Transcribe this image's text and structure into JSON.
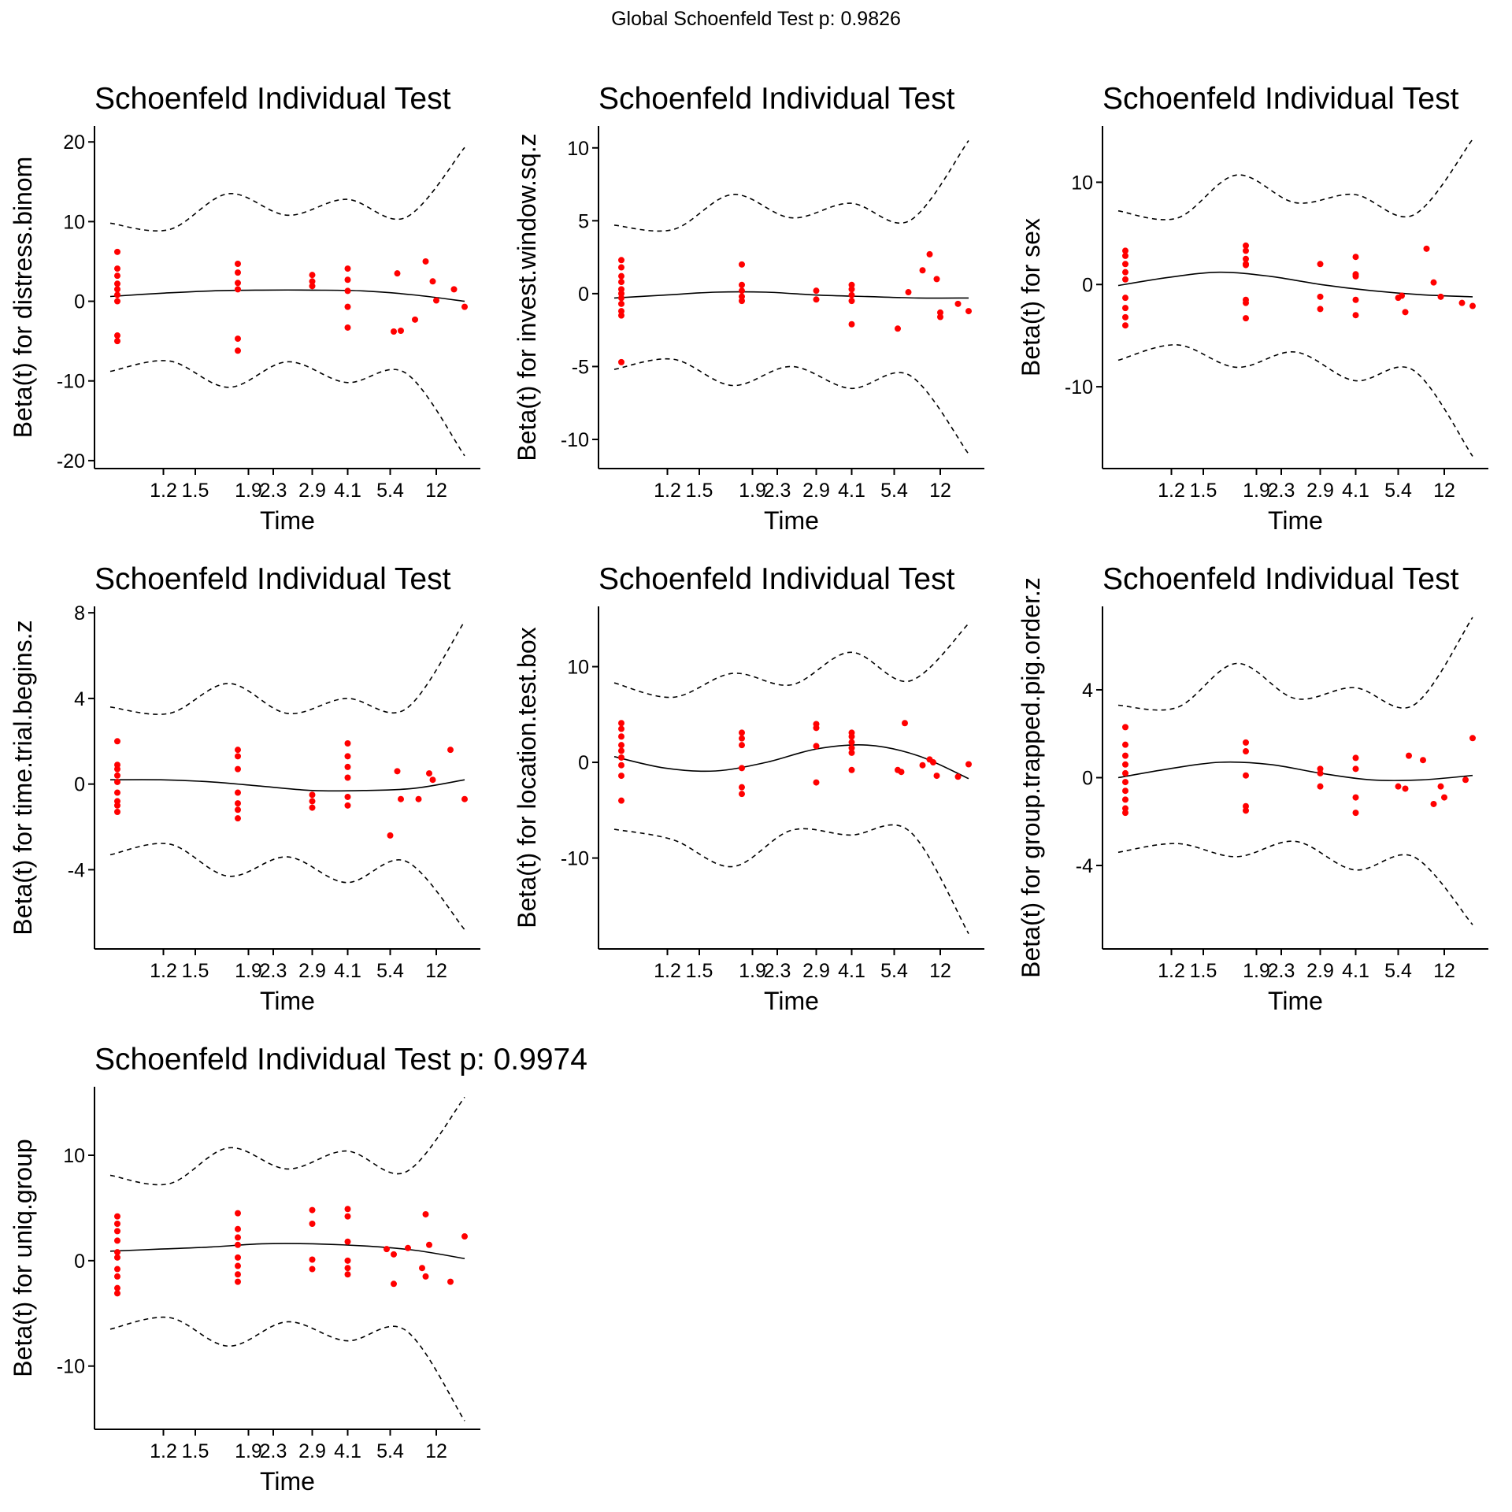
{
  "figure": {
    "global_title": "Global Schoenfeld Test p: 0.9826"
  },
  "style": {
    "point_color": "#ff0000",
    "fit_color": "#000000",
    "band_color": "#000000",
    "background": "#ffffff"
  },
  "chart_data": [
    {
      "type": "scatter",
      "title": "Schoenfeld Individual Test",
      "xlabel": "Time",
      "ylabel": "Beta(t) for distress.binom",
      "x_tick_labels": [
        "1.2",
        "1.5",
        "1.9",
        "2.3",
        "2.9",
        "4.1",
        "5.4",
        "12"
      ],
      "yticks": [
        -20,
        -10,
        0,
        10,
        20
      ],
      "ylim": [
        -21,
        22
      ],
      "fit": [
        0.6,
        1.0,
        1.3,
        1.4,
        1.4,
        1.3,
        0.8,
        0.0
      ],
      "upper": [
        9.8,
        9.0,
        13.5,
        10.8,
        12.8,
        10.5,
        19.3
      ],
      "lower": [
        -8.8,
        -7.5,
        -10.8,
        -7.6,
        -10.2,
        -9.0,
        -19.4
      ],
      "points": [
        [
          0.02,
          6.2
        ],
        [
          0.02,
          4.1
        ],
        [
          0.02,
          3.2
        ],
        [
          0.02,
          2.2
        ],
        [
          0.02,
          1.5
        ],
        [
          0.02,
          0.8
        ],
        [
          0.02,
          0.0
        ],
        [
          0.02,
          -4.3
        ],
        [
          0.02,
          -5.0
        ],
        [
          0.36,
          4.7
        ],
        [
          0.36,
          3.6
        ],
        [
          0.36,
          2.3
        ],
        [
          0.36,
          1.5
        ],
        [
          0.36,
          -4.7
        ],
        [
          0.36,
          -6.2
        ],
        [
          0.57,
          3.3
        ],
        [
          0.57,
          2.5
        ],
        [
          0.57,
          1.9
        ],
        [
          0.67,
          4.1
        ],
        [
          0.67,
          2.7
        ],
        [
          0.67,
          1.3
        ],
        [
          0.67,
          -0.7
        ],
        [
          0.67,
          -3.3
        ],
        [
          0.8,
          -3.8
        ],
        [
          0.81,
          3.5
        ],
        [
          0.82,
          -3.7
        ],
        [
          0.86,
          -2.3
        ],
        [
          0.89,
          5.0
        ],
        [
          0.91,
          2.5
        ],
        [
          0.92,
          0.1
        ],
        [
          0.97,
          1.5
        ],
        [
          1.0,
          -0.7
        ]
      ]
    },
    {
      "type": "scatter",
      "title": "Schoenfeld Individual Test",
      "xlabel": "Time",
      "ylabel": "Beta(t) for invest.window.sq.z",
      "x_tick_labels": [
        "1.2",
        "1.5",
        "1.9",
        "2.3",
        "2.9",
        "4.1",
        "5.4",
        "12"
      ],
      "yticks": [
        -10,
        -5,
        0,
        5,
        10
      ],
      "ylim": [
        -12,
        11.5
      ],
      "fit": [
        -0.3,
        -0.1,
        0.1,
        0.1,
        -0.1,
        -0.2,
        -0.3,
        -0.3
      ],
      "upper": [
        4.7,
        4.4,
        6.8,
        5.2,
        6.2,
        5.0,
        10.5
      ],
      "lower": [
        -5.2,
        -4.5,
        -6.3,
        -5.0,
        -6.5,
        -5.6,
        -11.0
      ],
      "points": [
        [
          0.02,
          2.3
        ],
        [
          0.02,
          1.8
        ],
        [
          0.02,
          1.2
        ],
        [
          0.02,
          0.8
        ],
        [
          0.02,
          0.3
        ],
        [
          0.02,
          0.0
        ],
        [
          0.02,
          -0.3
        ],
        [
          0.02,
          -0.7
        ],
        [
          0.02,
          -1.2
        ],
        [
          0.02,
          -1.5
        ],
        [
          0.02,
          -4.7
        ],
        [
          0.36,
          2.0
        ],
        [
          0.36,
          0.6
        ],
        [
          0.36,
          0.2
        ],
        [
          0.36,
          -0.2
        ],
        [
          0.36,
          -0.5
        ],
        [
          0.57,
          0.2
        ],
        [
          0.57,
          -0.4
        ],
        [
          0.67,
          0.6
        ],
        [
          0.67,
          0.3
        ],
        [
          0.67,
          -0.1
        ],
        [
          0.67,
          -0.5
        ],
        [
          0.67,
          -2.1
        ],
        [
          0.8,
          -2.4
        ],
        [
          0.83,
          0.1
        ],
        [
          0.87,
          1.6
        ],
        [
          0.89,
          2.7
        ],
        [
          0.91,
          1.0
        ],
        [
          0.92,
          -1.3
        ],
        [
          0.92,
          -1.6
        ],
        [
          0.97,
          -0.7
        ],
        [
          1.0,
          -1.2
        ]
      ]
    },
    {
      "type": "scatter",
      "title": "Schoenfeld Individual Test",
      "xlabel": "Time",
      "ylabel": "Beta(t) for sex",
      "x_tick_labels": [
        "1.2",
        "1.5",
        "1.9",
        "2.3",
        "2.9",
        "4.1",
        "5.4",
        "12"
      ],
      "yticks": [
        -10,
        0,
        10
      ],
      "ylim": [
        -18,
        15.5
      ],
      "fit": [
        -0.1,
        0.7,
        1.2,
        0.8,
        0.0,
        -0.6,
        -1.0,
        -1.2
      ],
      "upper": [
        7.2,
        6.5,
        10.7,
        8.0,
        8.8,
        6.8,
        14.2
      ],
      "lower": [
        -7.4,
        -5.9,
        -8.1,
        -6.6,
        -9.4,
        -8.4,
        -16.8
      ],
      "points": [
        [
          0.02,
          3.3
        ],
        [
          0.02,
          2.8
        ],
        [
          0.02,
          2.0
        ],
        [
          0.02,
          1.2
        ],
        [
          0.02,
          0.5
        ],
        [
          0.02,
          -1.3
        ],
        [
          0.02,
          -2.3
        ],
        [
          0.02,
          -3.2
        ],
        [
          0.02,
          -4.0
        ],
        [
          0.36,
          3.8
        ],
        [
          0.36,
          3.3
        ],
        [
          0.36,
          2.5
        ],
        [
          0.36,
          2.0
        ],
        [
          0.36,
          1.9
        ],
        [
          0.36,
          -1.5
        ],
        [
          0.36,
          -1.8
        ],
        [
          0.36,
          -3.3
        ],
        [
          0.57,
          2.0
        ],
        [
          0.57,
          -1.2
        ],
        [
          0.57,
          -2.4
        ],
        [
          0.67,
          2.7
        ],
        [
          0.67,
          1.0
        ],
        [
          0.67,
          0.8
        ],
        [
          0.67,
          -1.5
        ],
        [
          0.67,
          -3.0
        ],
        [
          0.79,
          -1.3
        ],
        [
          0.8,
          -1.1
        ],
        [
          0.81,
          -2.7
        ],
        [
          0.87,
          3.5
        ],
        [
          0.89,
          0.2
        ],
        [
          0.91,
          -1.2
        ],
        [
          0.97,
          -1.8
        ],
        [
          1.0,
          -2.1
        ]
      ]
    },
    {
      "type": "scatter",
      "title": "Schoenfeld Individual Test",
      "xlabel": "Time",
      "ylabel": "Beta(t) for time.trial.begins.z",
      "x_tick_labels": [
        "1.2",
        "1.5",
        "1.9",
        "2.3",
        "2.9",
        "4.1",
        "5.4",
        "12"
      ],
      "yticks": [
        -4,
        0,
        4,
        8
      ],
      "ylim": [
        -7.7,
        8.3
      ],
      "fit": [
        0.2,
        0.2,
        0.1,
        -0.1,
        -0.3,
        -0.3,
        -0.2,
        0.2
      ],
      "upper": [
        3.6,
        3.3,
        4.7,
        3.3,
        4.0,
        3.5,
        7.6
      ],
      "lower": [
        -3.3,
        -2.8,
        -4.3,
        -3.4,
        -4.6,
        -3.6,
        -6.8
      ],
      "points": [
        [
          0.02,
          2.0
        ],
        [
          0.02,
          0.9
        ],
        [
          0.02,
          0.7
        ],
        [
          0.02,
          0.4
        ],
        [
          0.02,
          0.1
        ],
        [
          0.02,
          -0.4
        ],
        [
          0.02,
          -0.8
        ],
        [
          0.02,
          -1.0
        ],
        [
          0.02,
          -1.3
        ],
        [
          0.36,
          1.6
        ],
        [
          0.36,
          1.3
        ],
        [
          0.36,
          0.7
        ],
        [
          0.36,
          -0.4
        ],
        [
          0.36,
          -0.9
        ],
        [
          0.36,
          -1.2
        ],
        [
          0.36,
          -1.6
        ],
        [
          0.57,
          -0.5
        ],
        [
          0.57,
          -0.8
        ],
        [
          0.57,
          -1.1
        ],
        [
          0.67,
          1.9
        ],
        [
          0.67,
          1.3
        ],
        [
          0.67,
          0.8
        ],
        [
          0.67,
          0.3
        ],
        [
          0.67,
          -0.6
        ],
        [
          0.67,
          -1.0
        ],
        [
          0.79,
          -2.4
        ],
        [
          0.81,
          0.6
        ],
        [
          0.82,
          -0.7
        ],
        [
          0.87,
          -0.7
        ],
        [
          0.9,
          0.5
        ],
        [
          0.91,
          0.2
        ],
        [
          0.96,
          1.6
        ],
        [
          1.0,
          -0.7
        ]
      ]
    },
    {
      "type": "scatter",
      "title": "Schoenfeld Individual Test",
      "xlabel": "Time",
      "ylabel": "Beta(t) for location.test.box",
      "x_tick_labels": [
        "1.2",
        "1.5",
        "1.9",
        "2.3",
        "2.9",
        "4.1",
        "5.4",
        "12"
      ],
      "yticks": [
        -10,
        0,
        10
      ],
      "ylim": [
        -19.5,
        16.3
      ],
      "fit": [
        0.6,
        -0.6,
        -0.9,
        0.0,
        1.4,
        1.8,
        0.7,
        -1.7
      ],
      "upper": [
        8.3,
        6.8,
        9.3,
        8.1,
        11.5,
        8.5,
        14.5
      ],
      "lower": [
        -7.0,
        -8.1,
        -10.9,
        -7.1,
        -7.6,
        -7.2,
        -17.9
      ],
      "points": [
        [
          0.02,
          4.1
        ],
        [
          0.02,
          3.5
        ],
        [
          0.02,
          2.7
        ],
        [
          0.02,
          1.8
        ],
        [
          0.02,
          1.2
        ],
        [
          0.02,
          0.5
        ],
        [
          0.02,
          -0.3
        ],
        [
          0.02,
          -1.4
        ],
        [
          0.02,
          -4.0
        ],
        [
          0.36,
          3.1
        ],
        [
          0.36,
          2.5
        ],
        [
          0.36,
          1.8
        ],
        [
          0.36,
          -0.6
        ],
        [
          0.36,
          -2.6
        ],
        [
          0.36,
          -3.3
        ],
        [
          0.57,
          4.0
        ],
        [
          0.57,
          3.6
        ],
        [
          0.57,
          1.7
        ],
        [
          0.57,
          -2.1
        ],
        [
          0.67,
          3.1
        ],
        [
          0.67,
          2.7
        ],
        [
          0.67,
          2.1
        ],
        [
          0.67,
          1.5
        ],
        [
          0.67,
          1.0
        ],
        [
          0.67,
          -0.8
        ],
        [
          0.8,
          -0.8
        ],
        [
          0.81,
          -1.0
        ],
        [
          0.82,
          4.1
        ],
        [
          0.87,
          -0.3
        ],
        [
          0.89,
          0.3
        ],
        [
          0.9,
          0.0
        ],
        [
          0.91,
          -1.4
        ],
        [
          0.97,
          -1.5
        ],
        [
          1.0,
          -0.2
        ]
      ]
    },
    {
      "type": "scatter",
      "title": "Schoenfeld Individual Test",
      "xlabel": "Time",
      "ylabel": "Beta(t) for group.trapped.pig.order.z",
      "x_tick_labels": [
        "1.2",
        "1.5",
        "1.9",
        "2.3",
        "2.9",
        "4.1",
        "5.4",
        "12"
      ],
      "yticks": [
        -4,
        0,
        4
      ],
      "ylim": [
        -7.8,
        7.8
      ],
      "fit": [
        0.0,
        0.4,
        0.7,
        0.6,
        0.2,
        -0.1,
        -0.1,
        0.1
      ],
      "upper": [
        3.3,
        3.2,
        5.2,
        3.6,
        4.1,
        3.3,
        7.3
      ],
      "lower": [
        -3.4,
        -3.0,
        -3.6,
        -2.9,
        -4.2,
        -3.6,
        -6.7
      ],
      "points": [
        [
          0.02,
          2.3
        ],
        [
          0.02,
          1.5
        ],
        [
          0.02,
          1.0
        ],
        [
          0.02,
          0.6
        ],
        [
          0.02,
          0.2
        ],
        [
          0.02,
          -0.2
        ],
        [
          0.02,
          -0.6
        ],
        [
          0.02,
          -1.0
        ],
        [
          0.02,
          -1.4
        ],
        [
          0.02,
          -1.6
        ],
        [
          0.36,
          1.6
        ],
        [
          0.36,
          1.2
        ],
        [
          0.36,
          0.1
        ],
        [
          0.36,
          -1.3
        ],
        [
          0.36,
          -1.5
        ],
        [
          0.57,
          0.4
        ],
        [
          0.57,
          0.2
        ],
        [
          0.57,
          -0.4
        ],
        [
          0.67,
          0.9
        ],
        [
          0.67,
          0.4
        ],
        [
          0.67,
          -0.9
        ],
        [
          0.67,
          -1.6
        ],
        [
          0.79,
          -0.4
        ],
        [
          0.81,
          -0.5
        ],
        [
          0.82,
          1.0
        ],
        [
          0.86,
          0.8
        ],
        [
          0.89,
          -1.2
        ],
        [
          0.91,
          -0.4
        ],
        [
          0.92,
          -0.9
        ],
        [
          0.98,
          -0.1
        ],
        [
          1.0,
          1.8
        ]
      ]
    },
    {
      "type": "scatter",
      "title": "Schoenfeld Individual Test p: 0.9974",
      "xlabel": "Time",
      "ylabel": "Beta(t) for uniq.group",
      "x_tick_labels": [
        "1.2",
        "1.5",
        "1.9",
        "2.3",
        "2.9",
        "4.1",
        "5.4",
        "12"
      ],
      "yticks": [
        -10,
        0,
        10
      ],
      "ylim": [
        -16,
        16.5
      ],
      "fit": [
        0.9,
        1.1,
        1.3,
        1.6,
        1.6,
        1.4,
        1.0,
        0.2
      ],
      "upper": [
        8.1,
        7.3,
        10.7,
        8.7,
        10.4,
        8.4,
        15.5
      ],
      "lower": [
        -6.5,
        -5.4,
        -8.1,
        -5.8,
        -7.6,
        -6.6,
        -15.2
      ],
      "points": [
        [
          0.02,
          4.2
        ],
        [
          0.02,
          3.5
        ],
        [
          0.02,
          2.8
        ],
        [
          0.02,
          1.9
        ],
        [
          0.02,
          0.8
        ],
        [
          0.02,
          0.3
        ],
        [
          0.02,
          -0.8
        ],
        [
          0.02,
          -1.5
        ],
        [
          0.02,
          -2.6
        ],
        [
          0.02,
          -3.1
        ],
        [
          0.36,
          4.5
        ],
        [
          0.36,
          3.0
        ],
        [
          0.36,
          2.2
        ],
        [
          0.36,
          1.5
        ],
        [
          0.36,
          0.3
        ],
        [
          0.36,
          -0.5
        ],
        [
          0.36,
          -1.3
        ],
        [
          0.36,
          -2.0
        ],
        [
          0.57,
          4.8
        ],
        [
          0.57,
          3.5
        ],
        [
          0.57,
          0.1
        ],
        [
          0.57,
          -0.8
        ],
        [
          0.67,
          4.9
        ],
        [
          0.67,
          4.2
        ],
        [
          0.67,
          1.8
        ],
        [
          0.67,
          0.0
        ],
        [
          0.67,
          -0.7
        ],
        [
          0.67,
          -1.3
        ],
        [
          0.78,
          1.1
        ],
        [
          0.8,
          -2.2
        ],
        [
          0.8,
          0.6
        ],
        [
          0.84,
          1.2
        ],
        [
          0.88,
          -0.7
        ],
        [
          0.89,
          -1.5
        ],
        [
          0.89,
          4.4
        ],
        [
          0.9,
          1.5
        ],
        [
          0.96,
          -2.0
        ],
        [
          1.0,
          2.3
        ]
      ]
    }
  ]
}
